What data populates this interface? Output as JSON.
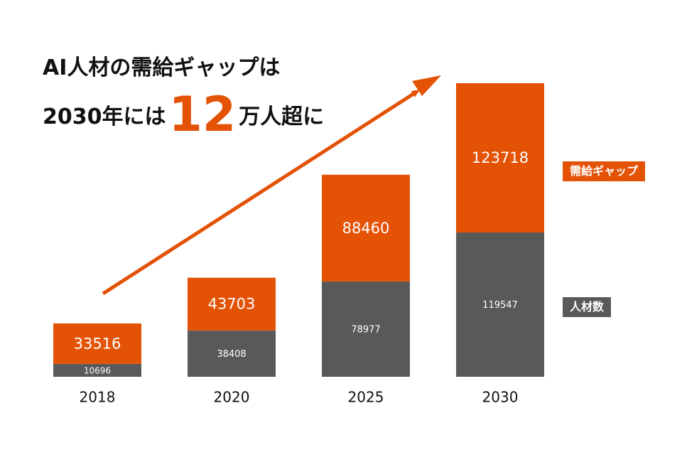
{
  "headline": {
    "line1": "AI人材の需給ギャップは",
    "line2_prefix": "2030年には",
    "line2_highlight": "12",
    "line2_suffix": "万人超に"
  },
  "legend": {
    "gap_label": "需給ギャップ",
    "talent_label": "人材数"
  },
  "colors": {
    "gap": "#e35205",
    "talent": "#595959",
    "arrow": "#e35205",
    "year_text": "#111111"
  },
  "chart_data": {
    "type": "bar",
    "stacked": true,
    "categories": [
      "2018",
      "2020",
      "2025",
      "2030"
    ],
    "series": [
      {
        "name": "人材数",
        "values": [
          10696,
          38408,
          78977,
          119547
        ]
      },
      {
        "name": "需給ギャップ",
        "values": [
          33516,
          43703,
          88460,
          123718
        ]
      }
    ],
    "title": "",
    "xlabel": "",
    "ylabel": "",
    "ylim": [
      0,
      243265
    ],
    "grid": false,
    "legend_position": "right"
  }
}
